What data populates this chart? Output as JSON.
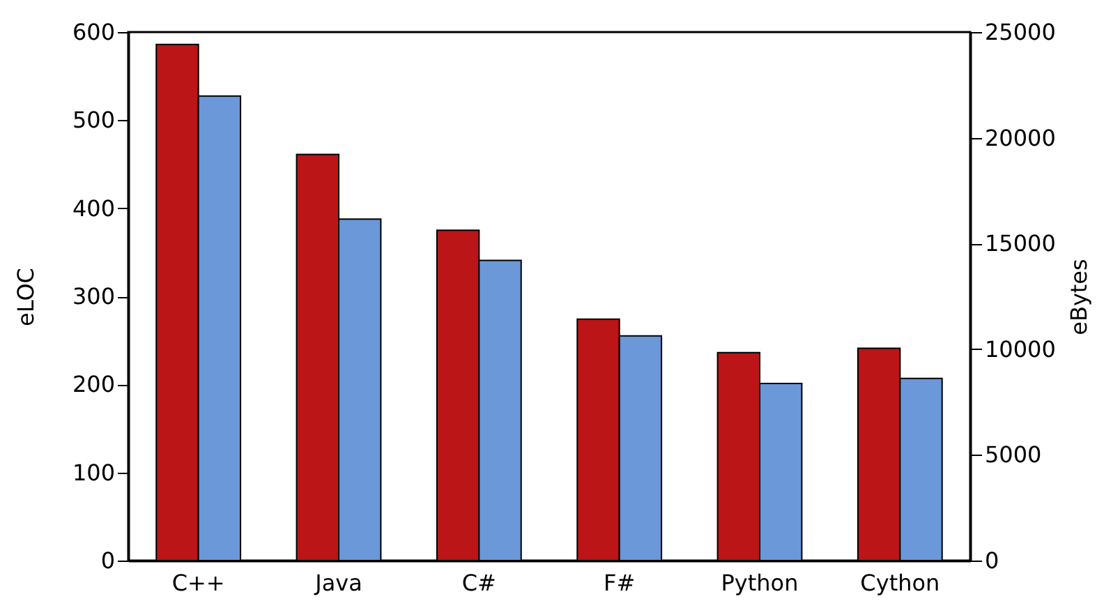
{
  "chart_data": {
    "type": "bar",
    "ylabel": "eLOC",
    "y2label": "eBytes",
    "categories": [
      "C++",
      "Java",
      "C#",
      "F#",
      "Python",
      "Cython"
    ],
    "series": [
      {
        "color": "#bb1518",
        "values": [
          586,
          461,
          375,
          274,
          236,
          241
        ]
      },
      {
        "color": "#6a98d8",
        "axis": "y2",
        "values": [
          21970,
          16150,
          14200,
          10630,
          8380,
          8620
        ]
      }
    ],
    "ylim": [
      0,
      600
    ],
    "yticks": [
      0,
      100,
      200,
      300,
      400,
      500,
      600
    ],
    "y2lim": [
      0,
      25000
    ],
    "y2ticks": [
      0,
      5000,
      10000,
      15000,
      20000,
      25000
    ],
    "grid": false
  }
}
